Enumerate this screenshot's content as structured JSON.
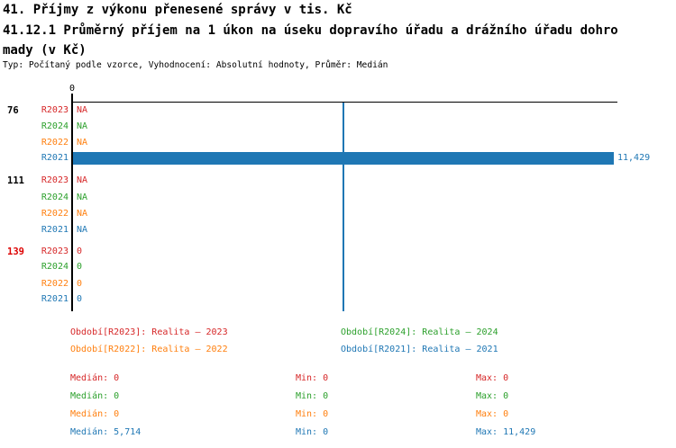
{
  "header": {
    "title_line1": "41. Příjmy z výkonu přenesené správy v tis. Kč",
    "title_line2": "41.12.1 Průměrný příjem na 1 úkon na úseku dopravího úřadu a drážního úřadu dohro",
    "title_line3": "mady (v Kč)",
    "meta": "Typ: Počítaný podle vzorce, Vyhodnocení: Absolutní hodnoty, Průměr: Medián"
  },
  "chart_data": {
    "type": "bar",
    "orientation": "horizontal",
    "unit": "Kč",
    "axis": {
      "tick0_label": "0",
      "xmin": 0,
      "xmax": 11429,
      "median_line_value": 5714
    },
    "series_colors": {
      "R2023": "#d62728",
      "R2024": "#2ca02c",
      "R2022": "#ff7f0e",
      "R2021": "#1f77b4"
    },
    "groups": [
      {
        "label": "76",
        "label_color": "#000000",
        "rows": [
          {
            "period": "R2023",
            "value": null,
            "display": "NA"
          },
          {
            "period": "R2024",
            "value": null,
            "display": "NA"
          },
          {
            "period": "R2022",
            "value": null,
            "display": "NA"
          },
          {
            "period": "R2021",
            "value": 11429,
            "display": "11,429"
          }
        ]
      },
      {
        "label": "111",
        "label_color": "#000000",
        "rows": [
          {
            "period": "R2023",
            "value": null,
            "display": "NA"
          },
          {
            "period": "R2024",
            "value": null,
            "display": "NA"
          },
          {
            "period": "R2022",
            "value": null,
            "display": "NA"
          },
          {
            "period": "R2021",
            "value": null,
            "display": "NA"
          }
        ]
      },
      {
        "label": "139",
        "label_color": "#dd0000",
        "rows": [
          {
            "period": "R2023",
            "value": 0,
            "display": "0"
          },
          {
            "period": "R2024",
            "value": 0,
            "display": "0"
          },
          {
            "period": "R2022",
            "value": 0,
            "display": "0"
          },
          {
            "period": "R2021",
            "value": 0,
            "display": "0"
          }
        ]
      }
    ]
  },
  "legend": [
    {
      "label": "Období[R2023]: Realita – 2023",
      "color": "#d62728"
    },
    {
      "label": "Období[R2024]: Realita – 2024",
      "color": "#2ca02c"
    },
    {
      "label": "Období[R2022]: Realita – 2022",
      "color": "#ff7f0e"
    },
    {
      "label": "Období[R2021]: Realita – 2021",
      "color": "#1f77b4"
    }
  ],
  "stats": [
    {
      "color": "#d62728",
      "median": "Medián: 0",
      "min": "Min: 0",
      "max": "Max: 0"
    },
    {
      "color": "#2ca02c",
      "median": "Medián: 0",
      "min": "Min: 0",
      "max": "Max: 0"
    },
    {
      "color": "#ff7f0e",
      "median": "Medián: 0",
      "min": "Min: 0",
      "max": "Max: 0"
    },
    {
      "color": "#1f77b4",
      "median": "Medián: 5,714",
      "min": "Min: 0",
      "max": "Max: 11,429"
    }
  ]
}
